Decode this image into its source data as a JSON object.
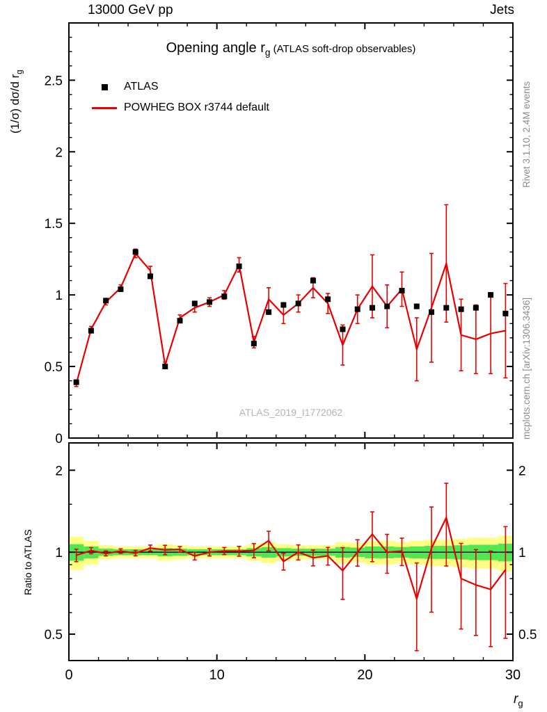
{
  "header": {
    "left_label": "13000 GeV pp",
    "right_label": "Jets"
  },
  "side_notes": {
    "rivet": "Rivet 3.1.10,  2.4M events",
    "mcplots": "mcplots.cern.ch [arXiv:1306.3436]"
  },
  "watermark": "ATLAS_2019_I1772062",
  "main_panel": {
    "title": {
      "main": "Opening angle r",
      "sub": "g",
      "paren": " (ATLAS soft-drop observables)"
    },
    "ylabel": {
      "pre": "(1/σ) dσ/d r",
      "sub": "g"
    },
    "legend": [
      {
        "label": "ATLAS",
        "marker": "black-square"
      },
      {
        "label": "POWHEG BOX r3744 default",
        "marker": "red-line"
      }
    ]
  },
  "ratio_panel": {
    "ylabel": "Ratio to ATLAS"
  },
  "x_axis": {
    "label_pre": "r",
    "label_sub": "g"
  },
  "colors": {
    "model_red": "#e60000",
    "band_yellow": "#ffff84",
    "band_green": "#53e653",
    "note_gray": "#8c8c8c",
    "watermark_gray": "#b4b4b4"
  },
  "chart_data": {
    "type": "line",
    "title": "Opening angle rg (ATLAS soft-drop observables)",
    "x_centers": [
      0.5,
      1.5,
      2.5,
      3.5,
      4.5,
      5.5,
      6.5,
      7.5,
      8.5,
      9.5,
      10.5,
      11.5,
      12.5,
      13.5,
      14.5,
      15.5,
      16.5,
      17.5,
      18.5,
      19.5,
      20.5,
      21.5,
      22.5,
      23.5,
      24.5,
      25.5,
      26.5,
      27.5,
      28.5,
      29.5
    ],
    "bin_width": 1,
    "series": [
      {
        "name": "ATLAS",
        "style": "filled-square-markers",
        "values": [
          0.39,
          0.75,
          0.96,
          1.04,
          1.3,
          1.13,
          0.5,
          0.82,
          0.94,
          0.95,
          0.99,
          1.2,
          0.66,
          0.88,
          0.93,
          0.94,
          1.1,
          0.97,
          0.76,
          0.9,
          0.91,
          0.92,
          1.03,
          0.92,
          0.88,
          0.91,
          0.9,
          0.91,
          1.0,
          0.87
        ],
        "errors": [
          0.02,
          0.02,
          0.02,
          0.02,
          0.02,
          0.02,
          0.02,
          0.02,
          0.02,
          0.02,
          0.02,
          0.02,
          0.02,
          0.02,
          0.02,
          0.02,
          0.02,
          0.02,
          0.02,
          0.02,
          0.02,
          0.02,
          0.02,
          0.02,
          0.02,
          0.02,
          0.02,
          0.02,
          0.02,
          0.02
        ]
      },
      {
        "name": "POWHEG BOX r3744 default",
        "style": "line-with-error-bars",
        "values": [
          0.38,
          0.76,
          0.95,
          1.05,
          1.29,
          1.17,
          0.51,
          0.84,
          0.91,
          0.95,
          1.0,
          1.21,
          0.67,
          0.97,
          0.86,
          0.94,
          1.05,
          0.94,
          0.65,
          0.9,
          1.06,
          0.92,
          1.04,
          0.62,
          0.91,
          1.22,
          0.72,
          0.69,
          0.73,
          0.75
        ],
        "errors": [
          0.02,
          0.02,
          0.02,
          0.02,
          0.03,
          0.03,
          0.02,
          0.02,
          0.03,
          0.03,
          0.03,
          0.05,
          0.04,
          0.08,
          0.06,
          0.06,
          0.07,
          0.07,
          0.14,
          0.1,
          0.22,
          0.15,
          0.12,
          0.22,
          0.38,
          0.41,
          0.25,
          0.24,
          0.28,
          0.33
        ]
      }
    ],
    "ratio": {
      "label": "Ratio to ATLAS",
      "reference": "ATLAS",
      "yellow_band_halfwidth": [
        0.14,
        0.1,
        0.06,
        0.05,
        0.05,
        0.05,
        0.07,
        0.06,
        0.05,
        0.05,
        0.05,
        0.05,
        0.07,
        0.09,
        0.07,
        0.06,
        0.06,
        0.06,
        0.09,
        0.08,
        0.1,
        0.1,
        0.09,
        0.1,
        0.11,
        0.11,
        0.12,
        0.13,
        0.13,
        0.15
      ],
      "green_band_halfwidth": [
        0.07,
        0.05,
        0.03,
        0.025,
        0.025,
        0.025,
        0.035,
        0.03,
        0.025,
        0.025,
        0.025,
        0.025,
        0.035,
        0.045,
        0.035,
        0.03,
        0.03,
        0.03,
        0.045,
        0.04,
        0.05,
        0.05,
        0.045,
        0.05,
        0.055,
        0.055,
        0.06,
        0.065,
        0.065,
        0.075
      ]
    },
    "axes": {
      "main": {
        "xlim": [
          0,
          30
        ],
        "ylim": [
          0,
          2.9
        ],
        "xticks": [
          0,
          10,
          20,
          30
        ],
        "xtick_labels": [
          "0",
          "10",
          "20",
          "30"
        ],
        "yticks": [
          0,
          0.5,
          1,
          1.5,
          2,
          2.5
        ],
        "ytick_labels": [
          "0",
          "0.5",
          "1",
          "1.5",
          "2",
          "2.5"
        ]
      },
      "ratio": {
        "scale": "log",
        "ylim": [
          0.4,
          2.52
        ],
        "yticks": [
          0.5,
          1,
          2
        ],
        "ytick_labels": [
          "0.5",
          "1",
          "2"
        ]
      }
    }
  }
}
